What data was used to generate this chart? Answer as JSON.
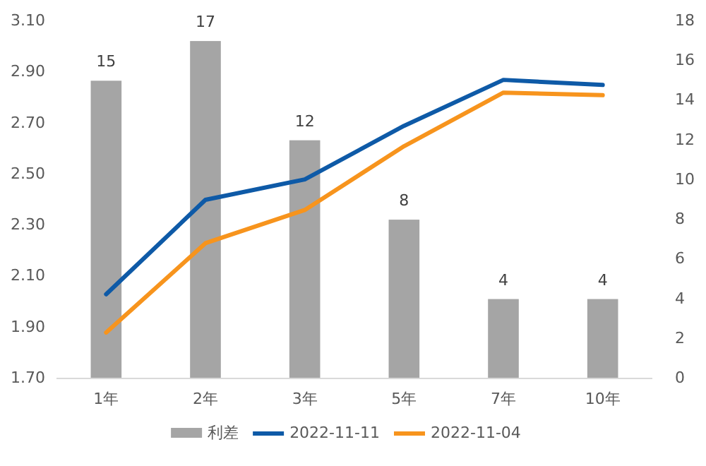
{
  "chart_data": {
    "type": "bar",
    "categories": [
      "1年",
      "2年",
      "3年",
      "5年",
      "7年",
      "10年"
    ],
    "series": [
      {
        "name": "利差",
        "axis": "y2",
        "color": "#a5a5a5",
        "values": [
          15,
          17,
          12,
          8,
          4,
          4
        ],
        "value_labels": [
          "15",
          "17",
          "12",
          "8",
          "4",
          "4"
        ]
      },
      {
        "name": "2022-11-11",
        "type": "line",
        "axis": "y",
        "color": "#0e5aa7",
        "values": [
          2.03,
          2.4,
          2.48,
          2.69,
          2.87,
          2.85
        ]
      },
      {
        "name": "2022-11-04",
        "type": "line",
        "axis": "y",
        "color": "#f7941d",
        "values": [
          1.88,
          2.23,
          2.36,
          2.61,
          2.82,
          2.81
        ]
      }
    ],
    "ylim": [
      1.7,
      3.1
    ],
    "yticks": [
      {
        "value": 1.7,
        "label": "1.70"
      },
      {
        "value": 1.9,
        "label": "1.90"
      },
      {
        "value": 2.1,
        "label": "2.10"
      },
      {
        "value": 2.3,
        "label": "2.30"
      },
      {
        "value": 2.5,
        "label": "2.50"
      },
      {
        "value": 2.7,
        "label": "2.70"
      },
      {
        "value": 2.9,
        "label": "2.90"
      },
      {
        "value": 3.1,
        "label": "3.10"
      }
    ],
    "y2lim": [
      0,
      18
    ],
    "y2ticks": [
      0,
      2,
      4,
      6,
      8,
      10,
      12,
      14,
      16,
      18
    ],
    "legend": "bottom",
    "grid": false,
    "marker": "none",
    "line_style": "solid"
  }
}
